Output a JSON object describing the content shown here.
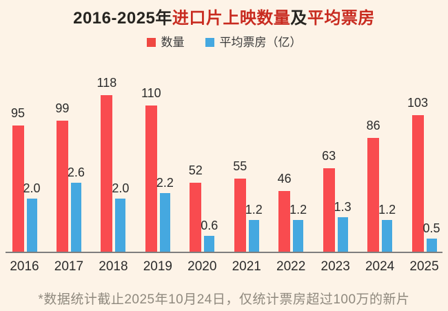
{
  "title": {
    "full": "2016-2025年进口片上映数量及平均票房",
    "segments": [
      {
        "text": "2016-2025年",
        "accent": false
      },
      {
        "text": "进口片上映数量",
        "accent": true
      },
      {
        "text": "及",
        "accent": false
      },
      {
        "text": "平均票房",
        "accent": true
      }
    ]
  },
  "legend": {
    "items": [
      {
        "label": "数量",
        "color": "#ef4741"
      },
      {
        "label": "平均票房（亿）",
        "color": "#45a8e0"
      }
    ]
  },
  "footnote": "*数据统计截止2025年10月24日，仅统计票房超过100万的新片",
  "colors": {
    "background": "#fdf3e7",
    "bar_quantity": "#f94b4f",
    "bar_boxoffice": "#45a8e0",
    "title_accent": "#c82b20",
    "text_dark": "#2b2b2b",
    "footnote_text": "#8f897e",
    "axis_line": "#7e7e7e"
  },
  "chart_data": {
    "type": "bar",
    "title": "2016-2025年进口片上映数量及平均票房",
    "categories": [
      "2016",
      "2017",
      "2018",
      "2019",
      "2020",
      "2021",
      "2022",
      "2023",
      "2024",
      "2025"
    ],
    "series": [
      {
        "name": "数量",
        "color": "#f94b4f",
        "values": [
          95,
          99,
          118,
          110,
          52,
          55,
          46,
          63,
          86,
          103
        ],
        "labels": [
          "95",
          "99",
          "118",
          "110",
          "52",
          "55",
          "46",
          "63",
          "86",
          "103"
        ]
      },
      {
        "name": "平均票房（亿）",
        "color": "#45a8e0",
        "values": [
          2.0,
          2.6,
          2.0,
          2.2,
          0.6,
          1.2,
          1.2,
          1.3,
          1.2,
          0.5
        ],
        "labels": [
          "2.0",
          "2.6",
          "2.0",
          "2.2",
          "0.6",
          "1.2",
          "1.2",
          "1.3",
          "1.2",
          "0.5"
        ]
      }
    ],
    "xlabel": "",
    "ylabel": "",
    "legend_position": "top",
    "grid": false,
    "value_labels": true,
    "y_axis_shown": false
  }
}
